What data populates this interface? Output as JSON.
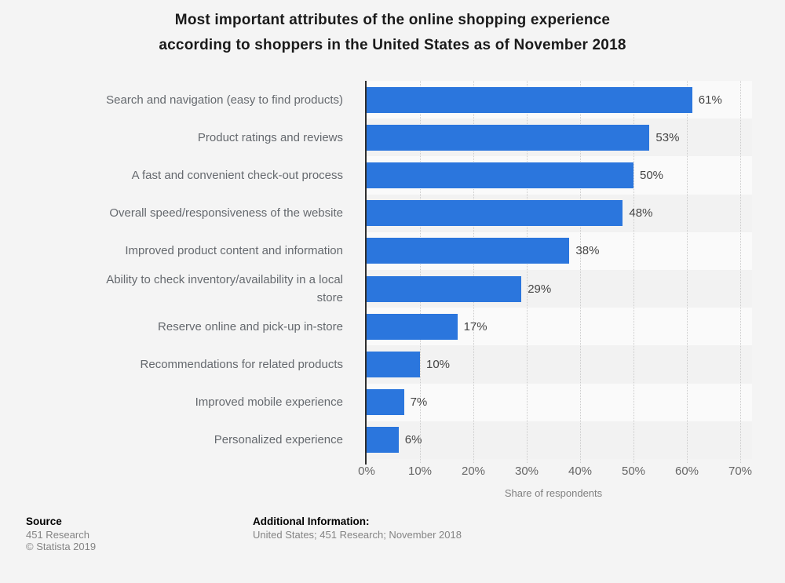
{
  "title": {
    "lines": [
      "Most important attributes of the online shopping experience",
      "according to shoppers in the United States as of November 2018"
    ]
  },
  "chart_data": {
    "type": "bar",
    "orientation": "horizontal",
    "title": "Most important attributes of the online shopping experience according to shoppers in the United States as of November 2018",
    "categories": [
      "Search and navigation (easy to find products)",
      "Product ratings and reviews",
      "A fast and convenient check-out process",
      "Overall speed/responsiveness of the website",
      "Improved product content and information",
      "Ability to check inventory/availability in a local store",
      "Reserve online and pick-up in-store",
      "Recommendations for related products",
      "Improved mobile experience",
      "Personalized experience"
    ],
    "values": [
      61,
      53,
      50,
      48,
      38,
      29,
      17,
      10,
      7,
      6
    ],
    "value_labels": [
      "61%",
      "53%",
      "50%",
      "48%",
      "38%",
      "29%",
      "17%",
      "10%",
      "7%",
      "6%"
    ],
    "xlabel": "Share of respondents",
    "xlim": [
      0,
      70
    ],
    "xtick_labels": [
      "0%",
      "10%",
      "20%",
      "30%",
      "40%",
      "50%",
      "60%",
      "70%"
    ],
    "xtick_values": [
      0,
      10,
      20,
      30,
      40,
      50,
      60,
      70
    ],
    "grid": "vertical-dotted",
    "legend": "none",
    "bar_color": "#2b76dd"
  },
  "footer": {
    "source_heading": "Source",
    "source_line1": "451 Research",
    "source_line2": "© Statista 2019",
    "additional_heading": "Additional Information:",
    "additional_line": "United States; 451 Research; November 2018"
  }
}
